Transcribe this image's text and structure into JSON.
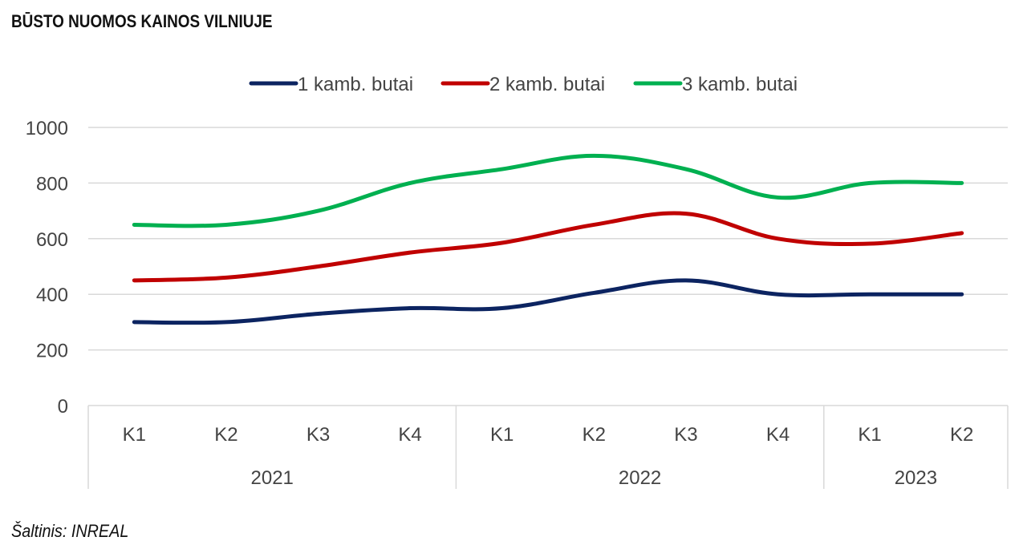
{
  "title": "BŪSTO NUOMOS KAINOS VILNIUJE",
  "source": "Šaltinis: INREAL",
  "chart_data": {
    "type": "line",
    "title": "BŪSTO NUOMOS KAINOS VILNIUJE",
    "categories": [
      "K1",
      "K2",
      "K3",
      "K4",
      "K1",
      "K2",
      "K3",
      "K4",
      "K1",
      "K2"
    ],
    "groups": [
      {
        "label": "2021",
        "start": 0,
        "count": 4
      },
      {
        "label": "2022",
        "start": 4,
        "count": 4
      },
      {
        "label": "2023",
        "start": 8,
        "count": 2
      }
    ],
    "series": [
      {
        "name": "1 kamb. butai",
        "color": "#0c2461",
        "values": [
          300,
          300,
          330,
          350,
          350,
          405,
          450,
          400,
          400,
          400
        ]
      },
      {
        "name": "2 kamb. butai",
        "color": "#c00000",
        "values": [
          450,
          460,
          500,
          550,
          585,
          650,
          690,
          600,
          582,
          620
        ]
      },
      {
        "name": "3 kamb. butai",
        "color": "#00b050",
        "values": [
          650,
          650,
          700,
          800,
          850,
          898,
          850,
          748,
          800,
          800
        ]
      }
    ],
    "ylim": [
      0,
      1000
    ],
    "yticks": [
      0,
      200,
      400,
      600,
      800,
      1000
    ],
    "grid": true,
    "legend_position": "top"
  }
}
